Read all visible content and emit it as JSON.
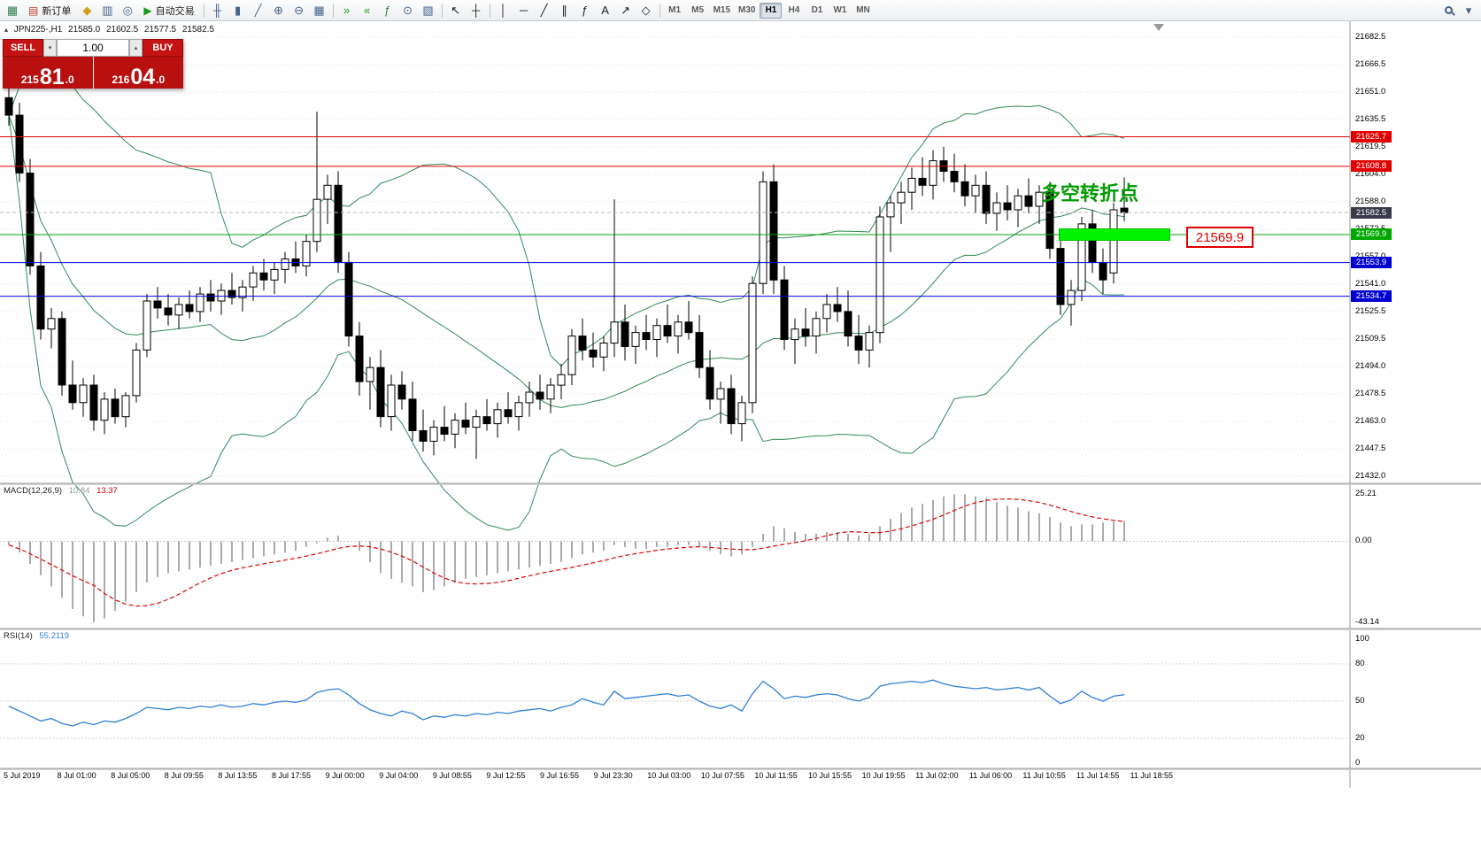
{
  "toolbar": {
    "active_timeframe": "H1",
    "items": [
      {
        "type": "icon",
        "name": "new-chart-icon",
        "glyph": "▦",
        "color": "#2f7f4f"
      },
      {
        "type": "labeled",
        "name": "new-order-button",
        "glyph": "▤",
        "glyph_color": "#c23a2a",
        "label": "新订单"
      },
      {
        "type": "icon",
        "name": "metaeditor-icon",
        "glyph": "◆",
        "color": "#d4a017"
      },
      {
        "type": "icon",
        "name": "data-window-icon",
        "glyph": "▥",
        "color": "#44648c"
      },
      {
        "type": "icon",
        "name": "navigator-icon",
        "glyph": "◎",
        "color": "#44648c"
      },
      {
        "type": "labeled",
        "name": "autotrading-button",
        "glyph": "▶",
        "glyph_color": "#1a9a1a",
        "label": "自动交易"
      },
      {
        "type": "sep"
      },
      {
        "type": "icon",
        "name": "bar-chart-mode-icon",
        "glyph": "╫",
        "color": "#44648c"
      },
      {
        "type": "icon",
        "name": "candlestick-mode-icon",
        "glyph": "▮",
        "color": "#44648c"
      },
      {
        "type": "icon",
        "name": "line-chart-mode-icon",
        "glyph": "╱",
        "color": "#44648c"
      },
      {
        "type": "icon",
        "name": "zoom-in-icon",
        "glyph": "⊕",
        "color": "#44648c"
      },
      {
        "type": "icon",
        "name": "zoom-out-icon",
        "glyph": "⊖",
        "color": "#44648c"
      },
      {
        "type": "icon",
        "name": "tile-windows-icon",
        "glyph": "▦",
        "color": "#44648c"
      },
      {
        "type": "sep"
      },
      {
        "type": "icon",
        "name": "auto-scroll-icon",
        "glyph": "»",
        "color": "#1a9a1a"
      },
      {
        "type": "icon",
        "name": "chart-shift-icon",
        "glyph": "«",
        "color": "#1a9a1a"
      },
      {
        "type": "icon",
        "name": "indicators-icon",
        "glyph": "ƒ",
        "color": "#2f7f4f"
      },
      {
        "type": "icon",
        "name": "periods-icon",
        "glyph": "⊙",
        "color": "#44648c"
      },
      {
        "type": "icon",
        "name": "templates-icon",
        "glyph": "▧",
        "color": "#44648c"
      },
      {
        "type": "sep"
      },
      {
        "type": "icon",
        "name": "cursor-icon",
        "glyph": "↖",
        "color": "#222222"
      },
      {
        "type": "icon",
        "name": "crosshair-icon",
        "glyph": "┼",
        "color": "#222222"
      },
      {
        "type": "sep"
      },
      {
        "type": "icon",
        "name": "vertical-line-icon",
        "glyph": "│",
        "color": "#222222"
      },
      {
        "type": "icon",
        "name": "horizontal-line-icon",
        "glyph": "─",
        "color": "#222222"
      },
      {
        "type": "icon",
        "name": "trendline-icon",
        "glyph": "╱",
        "color": "#222222"
      },
      {
        "type": "icon",
        "name": "equidistant-channel-icon",
        "glyph": "∥",
        "color": "#222222"
      },
      {
        "type": "icon",
        "name": "fibonacci-icon",
        "glyph": "ƒ",
        "color": "#222222"
      },
      {
        "type": "icon",
        "name": "text-icon",
        "glyph": "A",
        "color": "#222222"
      },
      {
        "type": "icon",
        "name": "arrow-tools-icon",
        "glyph": "↗",
        "color": "#222222"
      },
      {
        "type": "icon",
        "name": "shapes-icon",
        "glyph": "◇",
        "color": "#222222"
      },
      {
        "type": "sep"
      },
      {
        "type": "tf",
        "name": "timeframe-m1",
        "label": "M1"
      },
      {
        "type": "tf",
        "name": "timeframe-m5",
        "label": "M5"
      },
      {
        "type": "tf",
        "name": "timeframe-m15",
        "label": "M15"
      },
      {
        "type": "tf",
        "name": "timeframe-m30",
        "label": "M30"
      },
      {
        "type": "tf",
        "name": "timeframe-h1",
        "label": "H1",
        "active": true
      },
      {
        "type": "tf",
        "name": "timeframe-h4",
        "label": "H4"
      },
      {
        "type": "tf",
        "name": "timeframe-d1",
        "label": "D1"
      },
      {
        "type": "tf",
        "name": "timeframe-w1",
        "label": "W1"
      },
      {
        "type": "tf",
        "name": "timeframe-mn",
        "label": "MN"
      },
      {
        "type": "spacer"
      },
      {
        "type": "mag",
        "name": "search-icon"
      },
      {
        "type": "icon",
        "name": "menu-icon",
        "glyph": "▾",
        "color": "#44648c"
      }
    ]
  },
  "symbol_header": {
    "collapse_icon": "▴",
    "symbol": "JPN225-,H1",
    "open": "21585.0",
    "high": "21602.5",
    "low": "21577.5",
    "close": "21582.5"
  },
  "trade_panel": {
    "sell_label": "SELL",
    "buy_label": "BUY",
    "volume": "1.00",
    "spin_down_icon": "▾",
    "spin_up_icon": "▴",
    "sell_price": {
      "prefix": "215",
      "big": "81",
      "suffix": ".0"
    },
    "buy_price": {
      "prefix": "216",
      "big": "04",
      "suffix": ".0"
    }
  },
  "annotations": {
    "turning_point_text": "多空转折点",
    "highlight_label": "21569.9"
  },
  "price_axis": {
    "labels": [
      "21682.5",
      "21666.5",
      "21651.0",
      "21635.5",
      "21619.5",
      "21604.0",
      "21588.0",
      "21572.5",
      "21557.0",
      "21541.0",
      "21525.5",
      "21509.5",
      "21494.0",
      "21478.5",
      "21463.0",
      "21447.5",
      "21432.0"
    ]
  },
  "hlines": [
    {
      "price": 21625.7,
      "color": "#e00000",
      "tag": "21625.7",
      "tag_bg": "#e00000"
    },
    {
      "price": 21608.8,
      "color": "#e00000",
      "tag": "21608.8",
      "tag_bg": "#e00000"
    },
    {
      "price": 21582.5,
      "color": "#b8b8b8",
      "dash": true,
      "tag": "21582.5",
      "tag_bg": "#3a3a4a"
    },
    {
      "price": 21569.9,
      "color": "#00a000",
      "tag": "21569.9",
      "tag_bg": "#00a800"
    },
    {
      "price": 21553.9,
      "color": "#0000e0",
      "tag": "21553.9",
      "tag_bg": "#0000d0"
    },
    {
      "price": 21534.7,
      "color": "#0000e0",
      "tag": "21534.7",
      "tag_bg": "#0000d0"
    }
  ],
  "chart_data": {
    "type": "candlestick",
    "symbol": "JPN225-",
    "timeframe": "H1",
    "bollinger_color": "#2e8b57",
    "candles": [
      [
        21648,
        21656,
        21632,
        21638
      ],
      [
        21638,
        21645,
        21600,
        21605
      ],
      [
        21605,
        21613,
        21547,
        21552
      ],
      [
        21552,
        21560,
        21510,
        21516
      ],
      [
        21516,
        21528,
        21505,
        21522
      ],
      [
        21522,
        21526,
        21478,
        21484
      ],
      [
        21484,
        21498,
        21470,
        21474
      ],
      [
        21474,
        21488,
        21466,
        21484
      ],
      [
        21484,
        21490,
        21458,
        21464
      ],
      [
        21464,
        21480,
        21456,
        21476
      ],
      [
        21476,
        21482,
        21462,
        21466
      ],
      [
        21466,
        21480,
        21460,
        21478
      ],
      [
        21478,
        21508,
        21474,
        21504
      ],
      [
        21504,
        21536,
        21500,
        21532
      ],
      [
        21532,
        21540,
        21522,
        21528
      ],
      [
        21528,
        21536,
        21518,
        21524
      ],
      [
        21524,
        21534,
        21516,
        21530
      ],
      [
        21530,
        21538,
        21522,
        21526
      ],
      [
        21526,
        21540,
        21520,
        21536
      ],
      [
        21536,
        21544,
        21526,
        21532
      ],
      [
        21532,
        21542,
        21524,
        21538
      ],
      [
        21538,
        21548,
        21530,
        21534
      ],
      [
        21534,
        21544,
        21526,
        21540
      ],
      [
        21540,
        21552,
        21532,
        21548
      ],
      [
        21548,
        21556,
        21538,
        21544
      ],
      [
        21544,
        21554,
        21536,
        21550
      ],
      [
        21550,
        21560,
        21542,
        21556
      ],
      [
        21556,
        21566,
        21548,
        21552
      ],
      [
        21552,
        21570,
        21546,
        21566
      ],
      [
        21566,
        21640,
        21560,
        21590
      ],
      [
        21590,
        21604,
        21576,
        21598
      ],
      [
        21598,
        21606,
        21548,
        21554
      ],
      [
        21554,
        21560,
        21506,
        21512
      ],
      [
        21512,
        21520,
        21478,
        21486
      ],
      [
        21486,
        21500,
        21470,
        21494
      ],
      [
        21494,
        21504,
        21460,
        21466
      ],
      [
        21466,
        21490,
        21458,
        21484
      ],
      [
        21484,
        21492,
        21470,
        21476
      ],
      [
        21476,
        21486,
        21452,
        21458
      ],
      [
        21458,
        21470,
        21446,
        21452
      ],
      [
        21452,
        21464,
        21444,
        21460
      ],
      [
        21460,
        21472,
        21452,
        21456
      ],
      [
        21456,
        21468,
        21448,
        21464
      ],
      [
        21464,
        21474,
        21456,
        21460
      ],
      [
        21460,
        21470,
        21442,
        21466
      ],
      [
        21466,
        21476,
        21458,
        21462
      ],
      [
        21462,
        21474,
        21454,
        21470
      ],
      [
        21470,
        21480,
        21462,
        21466
      ],
      [
        21466,
        21478,
        21458,
        21474
      ],
      [
        21474,
        21486,
        21466,
        21480
      ],
      [
        21480,
        21490,
        21470,
        21476
      ],
      [
        21476,
        21488,
        21468,
        21484
      ],
      [
        21484,
        21496,
        21476,
        21490
      ],
      [
        21490,
        21516,
        21484,
        21512
      ],
      [
        21512,
        21522,
        21498,
        21504
      ],
      [
        21504,
        21514,
        21494,
        21500
      ],
      [
        21500,
        21512,
        21492,
        21508
      ],
      [
        21508,
        21590,
        21500,
        21520
      ],
      [
        21520,
        21530,
        21498,
        21506
      ],
      [
        21506,
        21518,
        21496,
        21514
      ],
      [
        21514,
        21524,
        21504,
        21510
      ],
      [
        21510,
        21522,
        21500,
        21518
      ],
      [
        21518,
        21530,
        21508,
        21512
      ],
      [
        21512,
        21524,
        21502,
        21520
      ],
      [
        21520,
        21532,
        21510,
        21514
      ],
      [
        21514,
        21524,
        21488,
        21494
      ],
      [
        21494,
        21504,
        21470,
        21476
      ],
      [
        21476,
        21486,
        21462,
        21482
      ],
      [
        21482,
        21490,
        21456,
        21462
      ],
      [
        21462,
        21478,
        21452,
        21474
      ],
      [
        21474,
        21546,
        21468,
        21542
      ],
      [
        21542,
        21606,
        21536,
        21600
      ],
      [
        21600,
        21610,
        21536,
        21544
      ],
      [
        21544,
        21552,
        21504,
        21510
      ],
      [
        21510,
        21522,
        21496,
        21516
      ],
      [
        21516,
        21528,
        21506,
        21512
      ],
      [
        21512,
        21526,
        21502,
        21522
      ],
      [
        21522,
        21536,
        21514,
        21530
      ],
      [
        21530,
        21540,
        21520,
        21526
      ],
      [
        21526,
        21538,
        21506,
        21512
      ],
      [
        21512,
        21524,
        21496,
        21504
      ],
      [
        21504,
        21518,
        21494,
        21514
      ],
      [
        21514,
        21586,
        21508,
        21580
      ],
      [
        21580,
        21592,
        21560,
        21588
      ],
      [
        21588,
        21600,
        21576,
        21594
      ],
      [
        21594,
        21608,
        21584,
        21602
      ],
      [
        21602,
        21614,
        21592,
        21598
      ],
      [
        21598,
        21618,
        21590,
        21612
      ],
      [
        21612,
        21620,
        21600,
        21606
      ],
      [
        21606,
        21616,
        21594,
        21600
      ],
      [
        21600,
        21610,
        21586,
        21592
      ],
      [
        21592,
        21604,
        21582,
        21598
      ],
      [
        21598,
        21606,
        21576,
        21582
      ],
      [
        21582,
        21594,
        21572,
        21588
      ],
      [
        21588,
        21598,
        21578,
        21584
      ],
      [
        21584,
        21596,
        21574,
        21592
      ],
      [
        21592,
        21602,
        21582,
        21586
      ],
      [
        21586,
        21598,
        21576,
        21594
      ],
      [
        21594,
        21600,
        21556,
        21562
      ],
      [
        21562,
        21570,
        21524,
        21530
      ],
      [
        21530,
        21544,
        21518,
        21538
      ],
      [
        21538,
        21580,
        21532,
        21576
      ],
      [
        21576,
        21584,
        21548,
        21554
      ],
      [
        21554,
        21562,
        21536,
        21544
      ],
      [
        21548,
        21588,
        21542,
        21584
      ],
      [
        21585,
        21602.5,
        21577.5,
        21582.5
      ]
    ],
    "macd": {
      "label": "MACD(12,26,9)",
      "value": "10.84",
      "signal_value": "13.37",
      "hist_color": "#ababab",
      "signal_color": "#e00000",
      "scale": [
        {
          "value": 25.21,
          "text": "25.21"
        },
        {
          "value": 0,
          "text": "0.00"
        },
        {
          "value": -43.14,
          "text": "-43.14"
        }
      ],
      "hist": [
        -2,
        -6,
        -12,
        -18,
        -24,
        -30,
        -36,
        -40,
        -43,
        -41,
        -37,
        -32,
        -27,
        -22,
        -19,
        -17,
        -16,
        -15,
        -14,
        -13,
        -12,
        -11,
        -10,
        -9,
        -8,
        -7,
        -6,
        -5,
        -3,
        -1,
        2,
        3,
        0,
        -5,
        -11,
        -17,
        -20,
        -22,
        -24,
        -27,
        -26,
        -24,
        -22,
        -20,
        -19,
        -18,
        -17,
        -16,
        -15,
        -14,
        -13,
        -12,
        -11,
        -9,
        -7,
        -6,
        -5,
        -2,
        -3,
        -4,
        -4,
        -3,
        -3,
        -2,
        -2,
        -3,
        -5,
        -7,
        -8,
        -7,
        -3,
        4,
        8,
        7,
        5,
        4,
        4,
        5,
        5,
        4,
        3,
        4,
        8,
        12,
        15,
        18,
        20,
        22,
        24,
        25,
        25,
        24,
        23,
        21,
        19,
        18,
        16,
        15,
        13,
        10,
        8,
        9,
        9,
        10,
        10.5,
        10.84
      ]
    },
    "rsi": {
      "label": "RSI(14)",
      "value": "55.2119",
      "line_color": "#2f7fd6",
      "levels": [
        80,
        50,
        20
      ],
      "scale": [
        {
          "value": 100,
          "text": "100"
        },
        {
          "value": 80,
          "text": "80"
        },
        {
          "value": 50,
          "text": "50"
        },
        {
          "value": 20,
          "text": "20"
        },
        {
          "value": 0,
          "text": "0"
        }
      ],
      "values": [
        46,
        42,
        38,
        34,
        36,
        32,
        30,
        33,
        31,
        34,
        33,
        36,
        40,
        45,
        44,
        43,
        45,
        44,
        46,
        45,
        47,
        45,
        46,
        48,
        47,
        49,
        50,
        49,
        51,
        57,
        59,
        60,
        55,
        48,
        43,
        40,
        38,
        42,
        40,
        35,
        38,
        37,
        39,
        38,
        40,
        39,
        41,
        40,
        42,
        43,
        44,
        42,
        45,
        47,
        52,
        49,
        47,
        58,
        52,
        53,
        54,
        55,
        56,
        54,
        55,
        50,
        46,
        44,
        47,
        42,
        56,
        66,
        60,
        52,
        54,
        53,
        55,
        56,
        55,
        52,
        50,
        53,
        62,
        64,
        65,
        66,
        65,
        67,
        64,
        62,
        61,
        60,
        61,
        59,
        60,
        61,
        59,
        61,
        54,
        48,
        51,
        58,
        53,
        50,
        54,
        55.21
      ]
    },
    "time_labels": [
      "5 Jul 2019",
      "8 Jul 01:00",
      "8 Jul 05:00",
      "8 Jul 09:55",
      "8 Jul 13:55",
      "8 Jul 17:55",
      "9 Jul 00:00",
      "9 Jul 04:00",
      "9 Jul 08:55",
      "9 Jul 12:55",
      "9 Jul 16:55",
      "9 Jul 23:30",
      "10 Jul 03:00",
      "10 Jul 07:55",
      "10 Jul 11:55",
      "10 Jul 15:55",
      "10 Jul 19:55",
      "11 Jul 02:00",
      "11 Jul 06:00",
      "11 Jul 10:55",
      "11 Jul 14:55",
      "11 Jul 18:55"
    ]
  }
}
